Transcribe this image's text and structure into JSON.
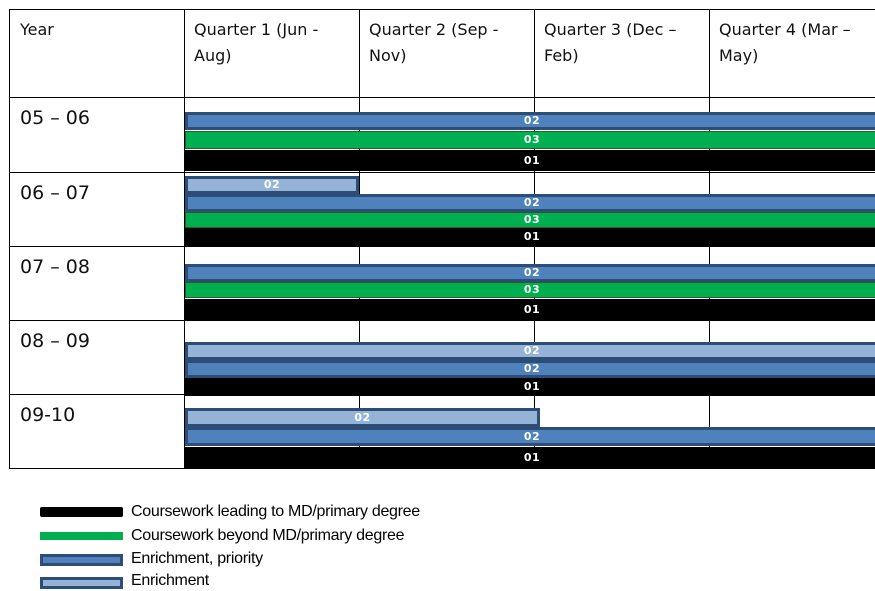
{
  "header": {
    "year": "Year",
    "q1": "Quarter 1 (Jun -\nAug)",
    "q2": "Quarter 2 (Sep -\nNov)",
    "q3": "Quarter 3 (Dec –\nFeb)",
    "q4": "Quarter 4 (Mar –\nMay)"
  },
  "rows": [
    {
      "year": "05 – 06",
      "bars": [
        {
          "type": "priority",
          "label": "02",
          "start": 0,
          "end": 4
        },
        {
          "type": "beyond",
          "label": "03",
          "start": 0,
          "end": 4
        },
        {
          "type": "leading",
          "label": "01",
          "start": 0,
          "end": 4
        }
      ]
    },
    {
      "year": "06 – 07",
      "bars": [
        {
          "type": "enrich",
          "label": "02",
          "start": 0,
          "end": 1
        },
        {
          "type": "priority",
          "label": "02",
          "start": 0,
          "end": 4
        },
        {
          "type": "beyond",
          "label": "03",
          "start": 0,
          "end": 4
        },
        {
          "type": "leading",
          "label": "01",
          "start": 0,
          "end": 4
        }
      ]
    },
    {
      "year": "07 – 08",
      "bars": [
        {
          "type": "priority",
          "label": "02",
          "start": 0,
          "end": 4
        },
        {
          "type": "beyond",
          "label": "03",
          "start": 0,
          "end": 4
        },
        {
          "type": "leading",
          "label": "01",
          "start": 0,
          "end": 4
        }
      ]
    },
    {
      "year": "08 – 09",
      "bars": [
        {
          "type": "enrich",
          "label": "02",
          "start": 0,
          "end": 4
        },
        {
          "type": "priority",
          "label": "02",
          "start": 0,
          "end": 4
        },
        {
          "type": "leading",
          "label": "01",
          "start": 0,
          "end": 4
        }
      ]
    },
    {
      "year": "09-10",
      "bars": [
        {
          "type": "enrich",
          "label": "02",
          "start": 0,
          "end": 2
        },
        {
          "type": "priority",
          "label": "02",
          "start": 0,
          "end": 4
        },
        {
          "type": "leading",
          "label": "01",
          "start": 0,
          "end": 4
        }
      ]
    }
  ],
  "legend": [
    {
      "type": "leading",
      "label": "Coursework leading to MD/primary degree"
    },
    {
      "type": "beyond",
      "label": "Coursework beyond MD/primary degree"
    },
    {
      "type": "priority",
      "label": "Enrichment, priority"
    },
    {
      "type": "enrich",
      "label": "Enrichment"
    }
  ],
  "colors": {
    "leading": "#000000",
    "beyond": "#00b050",
    "priority": "#4f81bd",
    "enrich": "#95b3d7",
    "border": "#2c4d75"
  }
}
